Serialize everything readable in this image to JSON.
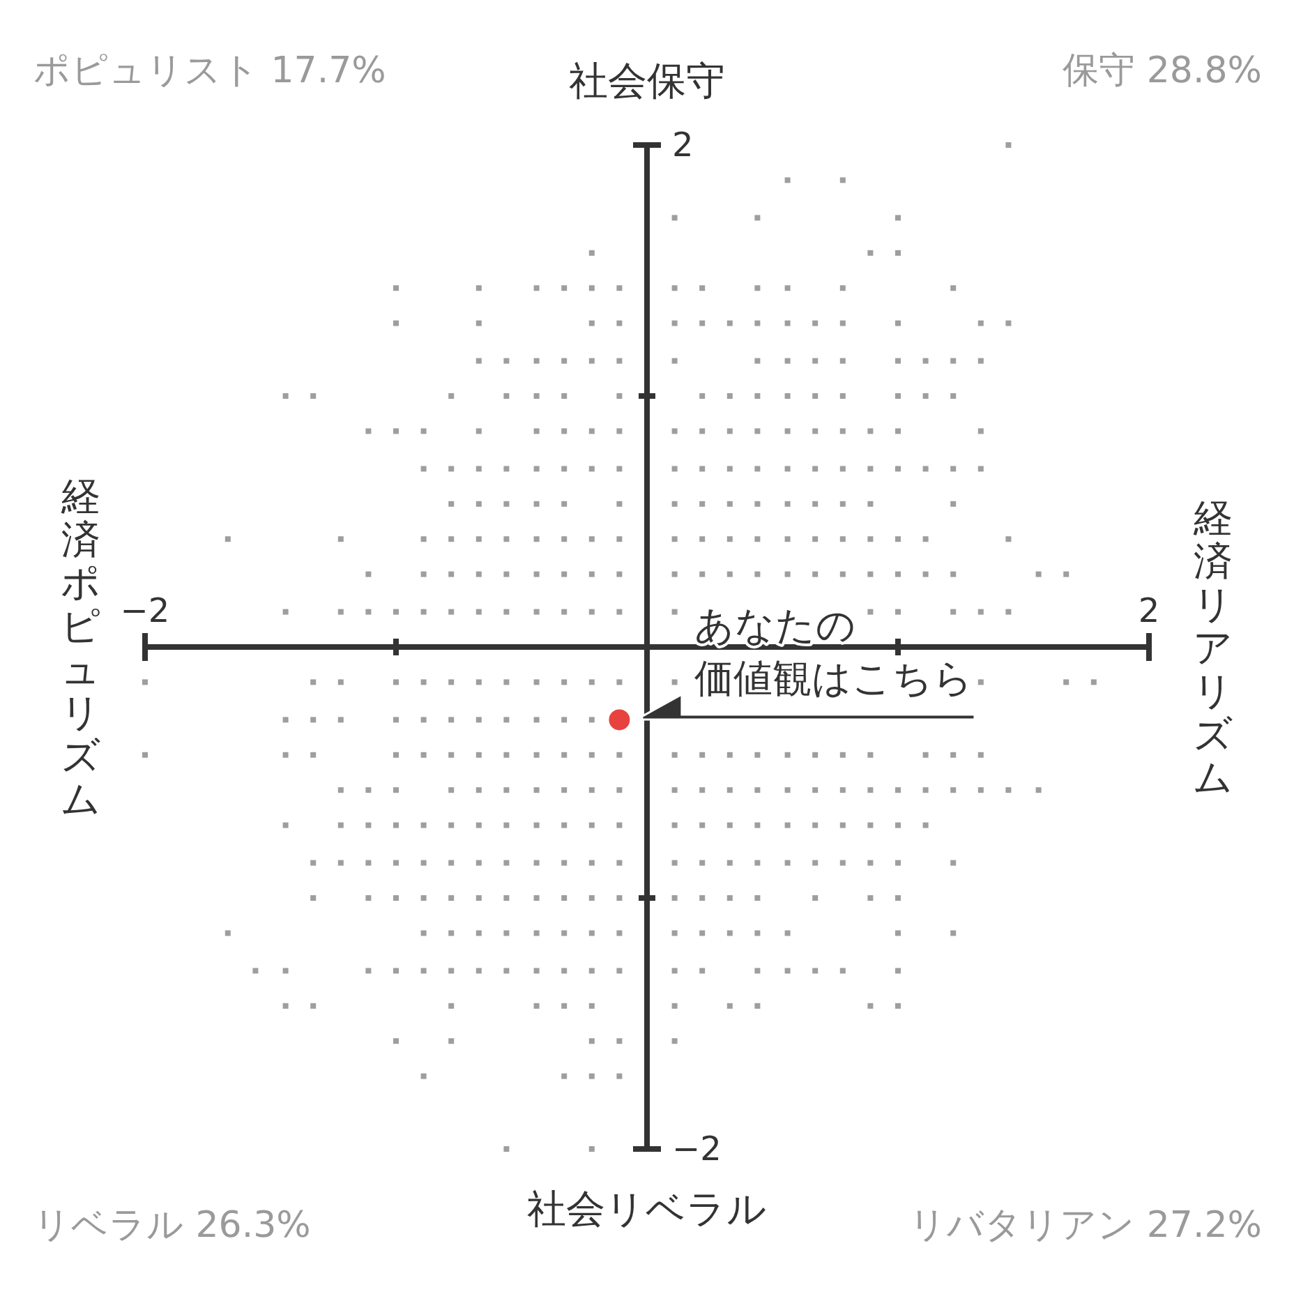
{
  "chart_data": {
    "type": "scatter",
    "xlim": [
      -2,
      2
    ],
    "ylim": [
      -2,
      2
    ],
    "xticks": [
      {
        "value": -2,
        "label": "−2"
      },
      {
        "value": -1,
        "label": null
      },
      {
        "value": 1,
        "label": null
      },
      2
    ],
    "yticks": [
      {
        "value": -2,
        "label": "−2"
      },
      {
        "value": -1,
        "label": null
      },
      {
        "value": 1,
        "label": null
      },
      2
    ],
    "annotations": [
      "社会保守",
      "社会リベラル",
      "経済ポピュリズム",
      "経済リアリズム",
      "ポピュリスト 17.7%",
      "保守 28.8%",
      "リベラル 26.3%",
      "リバタリアン 27.2%",
      {
        "text": "あなたの",
        "x": -0.11,
        "y": -0.29
      },
      {
        "text": "価値観はこちら",
        "x": -0.11,
        "y": -0.29
      }
    ],
    "series": [
      {
        "color": "#9e9e9e",
        "marker": "square",
        "x": [
          1.44,
          0.56,
          0.78,
          0.11,
          0.44,
          1,
          -0.22,
          0.89,
          1,
          -1,
          -0.67,
          -0.44,
          -0.33,
          -0.22,
          -0.11,
          0.11,
          0.22,
          0.44,
          0.56,
          0.78,
          1.22,
          -1,
          -0.67,
          -0.22,
          -0.11,
          0.11,
          0.22,
          0.33,
          0.44,
          0.56,
          0.67,
          0.78,
          1,
          1.33,
          1.44,
          -0.67,
          -0.56,
          -0.44,
          -0.33,
          -0.22,
          -0.11,
          0.11,
          0.44,
          0.56,
          0.67,
          0.78,
          1,
          1.11,
          1.22,
          1.33,
          -1.44,
          -1.33,
          -0.78,
          -0.56,
          -0.44,
          -0.33,
          -0.11,
          0.22,
          0.33,
          0.44,
          0.56,
          0.67,
          0.78,
          1,
          1.11,
          1.22,
          -1.11,
          -1,
          -0.89,
          -0.67,
          -0.44,
          -0.33,
          -0.22,
          -0.11,
          0.11,
          0.22,
          0.33,
          0.44,
          0.56,
          0.67,
          0.78,
          0.89,
          1,
          1.33,
          -0.89,
          -0.78,
          -0.67,
          -0.56,
          -0.44,
          -0.33,
          -0.22,
          -0.11,
          0.11,
          0.22,
          0.33,
          0.44,
          0.56,
          0.67,
          0.78,
          0.89,
          1,
          1.11,
          1.22,
          1.33,
          -0.78,
          -0.67,
          -0.56,
          -0.44,
          -0.33,
          -0.11,
          0.11,
          0.22,
          0.33,
          0.44,
          0.56,
          0.67,
          0.78,
          0.89,
          1.22,
          -1.67,
          -1.22,
          -0.89,
          -0.78,
          -0.67,
          -0.56,
          -0.44,
          -0.33,
          -0.22,
          -0.11,
          0.11,
          0.22,
          0.33,
          0.44,
          0.56,
          0.67,
          0.78,
          0.89,
          1,
          1.11,
          1.44,
          -1.11,
          -0.89,
          -0.78,
          -0.67,
          -0.56,
          -0.44,
          -0.33,
          -0.22,
          -0.11,
          0.11,
          0.22,
          0.33,
          0.44,
          0.56,
          0.67,
          0.78,
          0.89,
          1,
          1.11,
          1.22,
          1.56,
          1.67,
          -1.44,
          -1.22,
          -1.11,
          -1,
          -0.89,
          -0.78,
          -0.67,
          -0.56,
          -0.44,
          -0.33,
          -0.22,
          -0.11,
          0.11,
          0.89,
          1,
          1.22,
          1.33,
          1.44,
          -2,
          -1.33,
          -1.22,
          -1,
          -0.89,
          -0.78,
          -0.67,
          -0.56,
          -0.44,
          -0.33,
          -0.22,
          -0.11,
          0.11,
          1.33,
          1.67,
          1.78,
          -1.44,
          -1.33,
          -1.22,
          -1,
          -0.89,
          -0.78,
          -0.67,
          -0.56,
          -0.44,
          -0.33,
          -0.22,
          -2,
          -1.44,
          -1.33,
          -1,
          -0.89,
          -0.78,
          -0.67,
          -0.56,
          -0.44,
          -0.33,
          -0.22,
          -0.11,
          0.11,
          0.22,
          0.33,
          0.44,
          0.56,
          0.67,
          0.78,
          0.89,
          1.11,
          1.22,
          1.33,
          -1.22,
          -1.11,
          -1,
          -0.78,
          -0.67,
          -0.56,
          -0.44,
          -0.33,
          -0.22,
          -0.11,
          0.11,
          0.22,
          0.33,
          0.44,
          0.56,
          0.67,
          0.78,
          0.89,
          1,
          1.11,
          1.22,
          1.33,
          1.44,
          1.56,
          -1.44,
          -1.22,
          -1.11,
          -1,
          -0.89,
          -0.78,
          -0.67,
          -0.56,
          -0.44,
          -0.33,
          -0.22,
          -0.11,
          0.11,
          0.22,
          0.33,
          0.44,
          0.56,
          0.67,
          0.78,
          0.89,
          1,
          1.11,
          -1.33,
          -1.22,
          -1.11,
          -1,
          -0.89,
          -0.78,
          -0.67,
          -0.56,
          -0.44,
          -0.33,
          -0.22,
          -0.11,
          0.11,
          0.22,
          0.33,
          0.44,
          0.56,
          0.67,
          0.78,
          0.89,
          1,
          1.22,
          -1.33,
          -1.11,
          -1,
          -0.89,
          -0.78,
          -0.67,
          -0.56,
          -0.44,
          -0.33,
          -0.22,
          -0.11,
          0.11,
          0.22,
          0.33,
          0.44,
          0.67,
          0.89,
          1,
          -1.67,
          -0.89,
          -0.78,
          -0.67,
          -0.56,
          -0.44,
          -0.33,
          -0.22,
          -0.11,
          0.11,
          0.22,
          0.33,
          0.44,
          0.56,
          1,
          1.22,
          -1.56,
          -1.44,
          -1.11,
          -1,
          -0.89,
          -0.78,
          -0.67,
          -0.56,
          -0.44,
          -0.33,
          -0.22,
          -0.11,
          0.11,
          0.22,
          0.44,
          0.56,
          0.67,
          0.78,
          1,
          -1.44,
          -1.33,
          -0.78,
          -0.44,
          -0.33,
          -0.22,
          0.11,
          0.33,
          0.44,
          0.89,
          1,
          -1,
          -0.78,
          -0.22,
          -0.11,
          0.11,
          -0.89,
          -0.33,
          -0.22,
          -0.11,
          -0.56,
          -0.22
        ],
        "values": [
          2,
          1.86,
          1.86,
          1.71,
          1.71,
          1.71,
          1.57,
          1.57,
          1.57,
          1.43,
          1.43,
          1.43,
          1.43,
          1.43,
          1.43,
          1.43,
          1.43,
          1.43,
          1.43,
          1.43,
          1.43,
          1.29,
          1.29,
          1.29,
          1.29,
          1.29,
          1.29,
          1.29,
          1.29,
          1.29,
          1.29,
          1.29,
          1.29,
          1.29,
          1.29,
          1.14,
          1.14,
          1.14,
          1.14,
          1.14,
          1.14,
          1.14,
          1.14,
          1.14,
          1.14,
          1.14,
          1.14,
          1.14,
          1.14,
          1.14,
          1,
          1,
          1,
          1,
          1,
          1,
          1,
          1,
          1,
          1,
          1,
          1,
          1,
          1,
          1,
          1,
          0.86,
          0.86,
          0.86,
          0.86,
          0.86,
          0.86,
          0.86,
          0.86,
          0.86,
          0.86,
          0.86,
          0.86,
          0.86,
          0.86,
          0.86,
          0.86,
          0.86,
          0.86,
          0.71,
          0.71,
          0.71,
          0.71,
          0.71,
          0.71,
          0.71,
          0.71,
          0.71,
          0.71,
          0.71,
          0.71,
          0.71,
          0.71,
          0.71,
          0.71,
          0.71,
          0.71,
          0.71,
          0.71,
          0.57,
          0.57,
          0.57,
          0.57,
          0.57,
          0.57,
          0.57,
          0.57,
          0.57,
          0.57,
          0.57,
          0.57,
          0.57,
          0.57,
          0.57,
          0.43,
          0.43,
          0.43,
          0.43,
          0.43,
          0.43,
          0.43,
          0.43,
          0.43,
          0.43,
          0.43,
          0.43,
          0.43,
          0.43,
          0.43,
          0.43,
          0.43,
          0.43,
          0.43,
          0.43,
          0.43,
          0.29,
          0.29,
          0.29,
          0.29,
          0.29,
          0.29,
          0.29,
          0.29,
          0.29,
          0.29,
          0.29,
          0.29,
          0.29,
          0.29,
          0.29,
          0.29,
          0.29,
          0.29,
          0.29,
          0.29,
          0.29,
          0.29,
          0.14,
          0.14,
          0.14,
          0.14,
          0.14,
          0.14,
          0.14,
          0.14,
          0.14,
          0.14,
          0.14,
          0.14,
          0.14,
          0.14,
          0.14,
          0.14,
          0.14,
          0.14,
          -0.14,
          -0.14,
          -0.14,
          -0.14,
          -0.14,
          -0.14,
          -0.14,
          -0.14,
          -0.14,
          -0.14,
          -0.14,
          -0.14,
          -0.14,
          -0.14,
          -0.14,
          -0.14,
          -0.29,
          -0.29,
          -0.29,
          -0.29,
          -0.29,
          -0.29,
          -0.29,
          -0.29,
          -0.29,
          -0.29,
          -0.29,
          -0.43,
          -0.43,
          -0.43,
          -0.43,
          -0.43,
          -0.43,
          -0.43,
          -0.43,
          -0.43,
          -0.43,
          -0.43,
          -0.43,
          -0.43,
          -0.43,
          -0.43,
          -0.43,
          -0.43,
          -0.43,
          -0.43,
          -0.43,
          -0.43,
          -0.43,
          -0.43,
          -0.57,
          -0.57,
          -0.57,
          -0.57,
          -0.57,
          -0.57,
          -0.57,
          -0.57,
          -0.57,
          -0.57,
          -0.57,
          -0.57,
          -0.57,
          -0.57,
          -0.57,
          -0.57,
          -0.57,
          -0.57,
          -0.57,
          -0.57,
          -0.57,
          -0.57,
          -0.57,
          -0.57,
          -0.71,
          -0.71,
          -0.71,
          -0.71,
          -0.71,
          -0.71,
          -0.71,
          -0.71,
          -0.71,
          -0.71,
          -0.71,
          -0.71,
          -0.71,
          -0.71,
          -0.71,
          -0.71,
          -0.71,
          -0.71,
          -0.71,
          -0.71,
          -0.71,
          -0.71,
          -0.86,
          -0.86,
          -0.86,
          -0.86,
          -0.86,
          -0.86,
          -0.86,
          -0.86,
          -0.86,
          -0.86,
          -0.86,
          -0.86,
          -0.86,
          -0.86,
          -0.86,
          -0.86,
          -0.86,
          -0.86,
          -0.86,
          -0.86,
          -0.86,
          -0.86,
          -1,
          -1,
          -1,
          -1,
          -1,
          -1,
          -1,
          -1,
          -1,
          -1,
          -1,
          -1,
          -1,
          -1,
          -1,
          -1,
          -1,
          -1,
          -1.14,
          -1.14,
          -1.14,
          -1.14,
          -1.14,
          -1.14,
          -1.14,
          -1.14,
          -1.14,
          -1.14,
          -1.14,
          -1.14,
          -1.14,
          -1.14,
          -1.14,
          -1.14,
          -1.29,
          -1.29,
          -1.29,
          -1.29,
          -1.29,
          -1.29,
          -1.29,
          -1.29,
          -1.29,
          -1.29,
          -1.29,
          -1.29,
          -1.29,
          -1.29,
          -1.29,
          -1.29,
          -1.29,
          -1.29,
          -1.29,
          -1.43,
          -1.43,
          -1.43,
          -1.43,
          -1.43,
          -1.43,
          -1.43,
          -1.43,
          -1.43,
          -1.43,
          -1.43,
          -1.57,
          -1.57,
          -1.57,
          -1.57,
          -1.57,
          -1.71,
          -1.71,
          -1.71,
          -1.71,
          -2,
          -2
        ]
      },
      {
        "color": "#e8423f",
        "marker": "circle",
        "x": [
          -0.11
        ],
        "values": [
          -0.29
        ]
      }
    ]
  }
}
